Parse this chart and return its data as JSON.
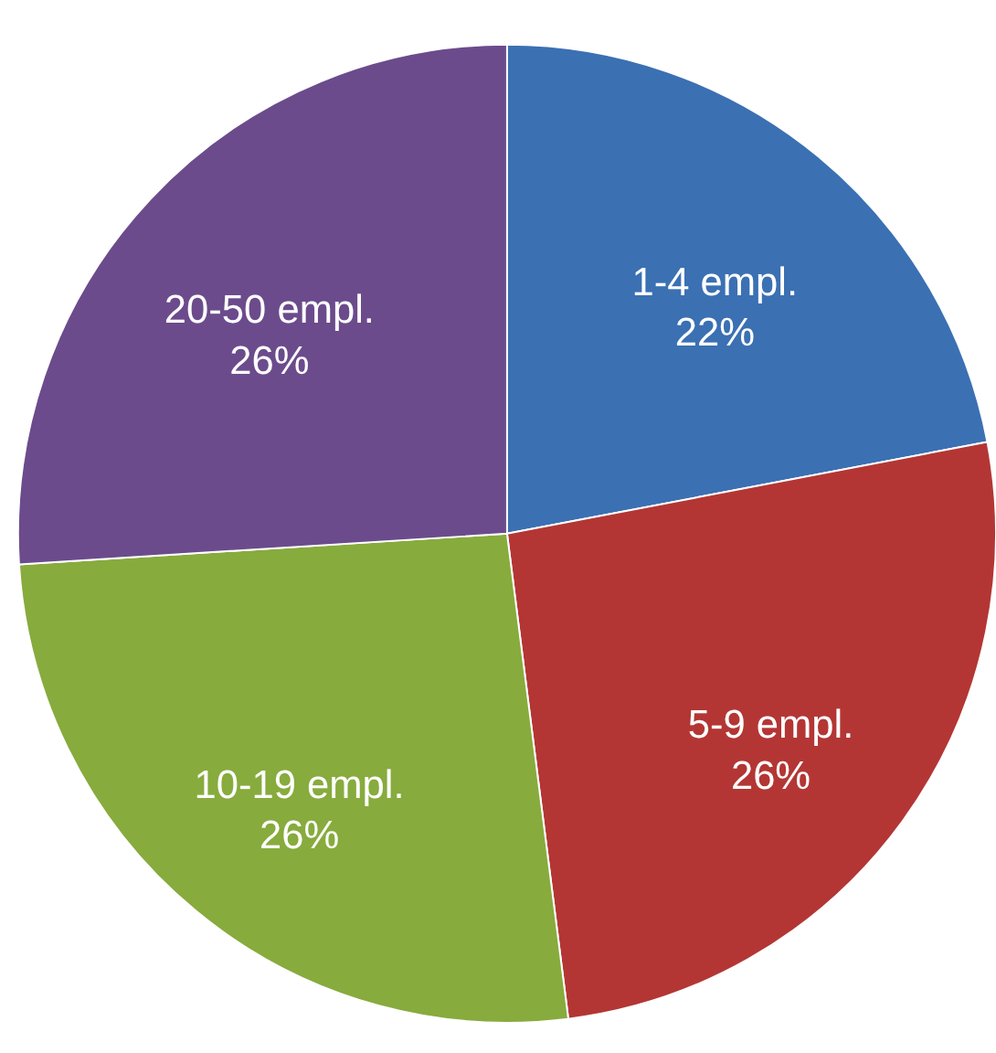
{
  "chart_data": {
    "type": "pie",
    "categories": [
      "1-4 empl.",
      "5-9 empl.",
      "10-19 empl.",
      "20-50 empl."
    ],
    "values": [
      22,
      26,
      26,
      26
    ],
    "colors": [
      "#3b70b3",
      "#b33634",
      "#87ab3d",
      "#6b4b8c"
    ],
    "value_labels": [
      "22%",
      "26%",
      "26%",
      "26%"
    ]
  }
}
